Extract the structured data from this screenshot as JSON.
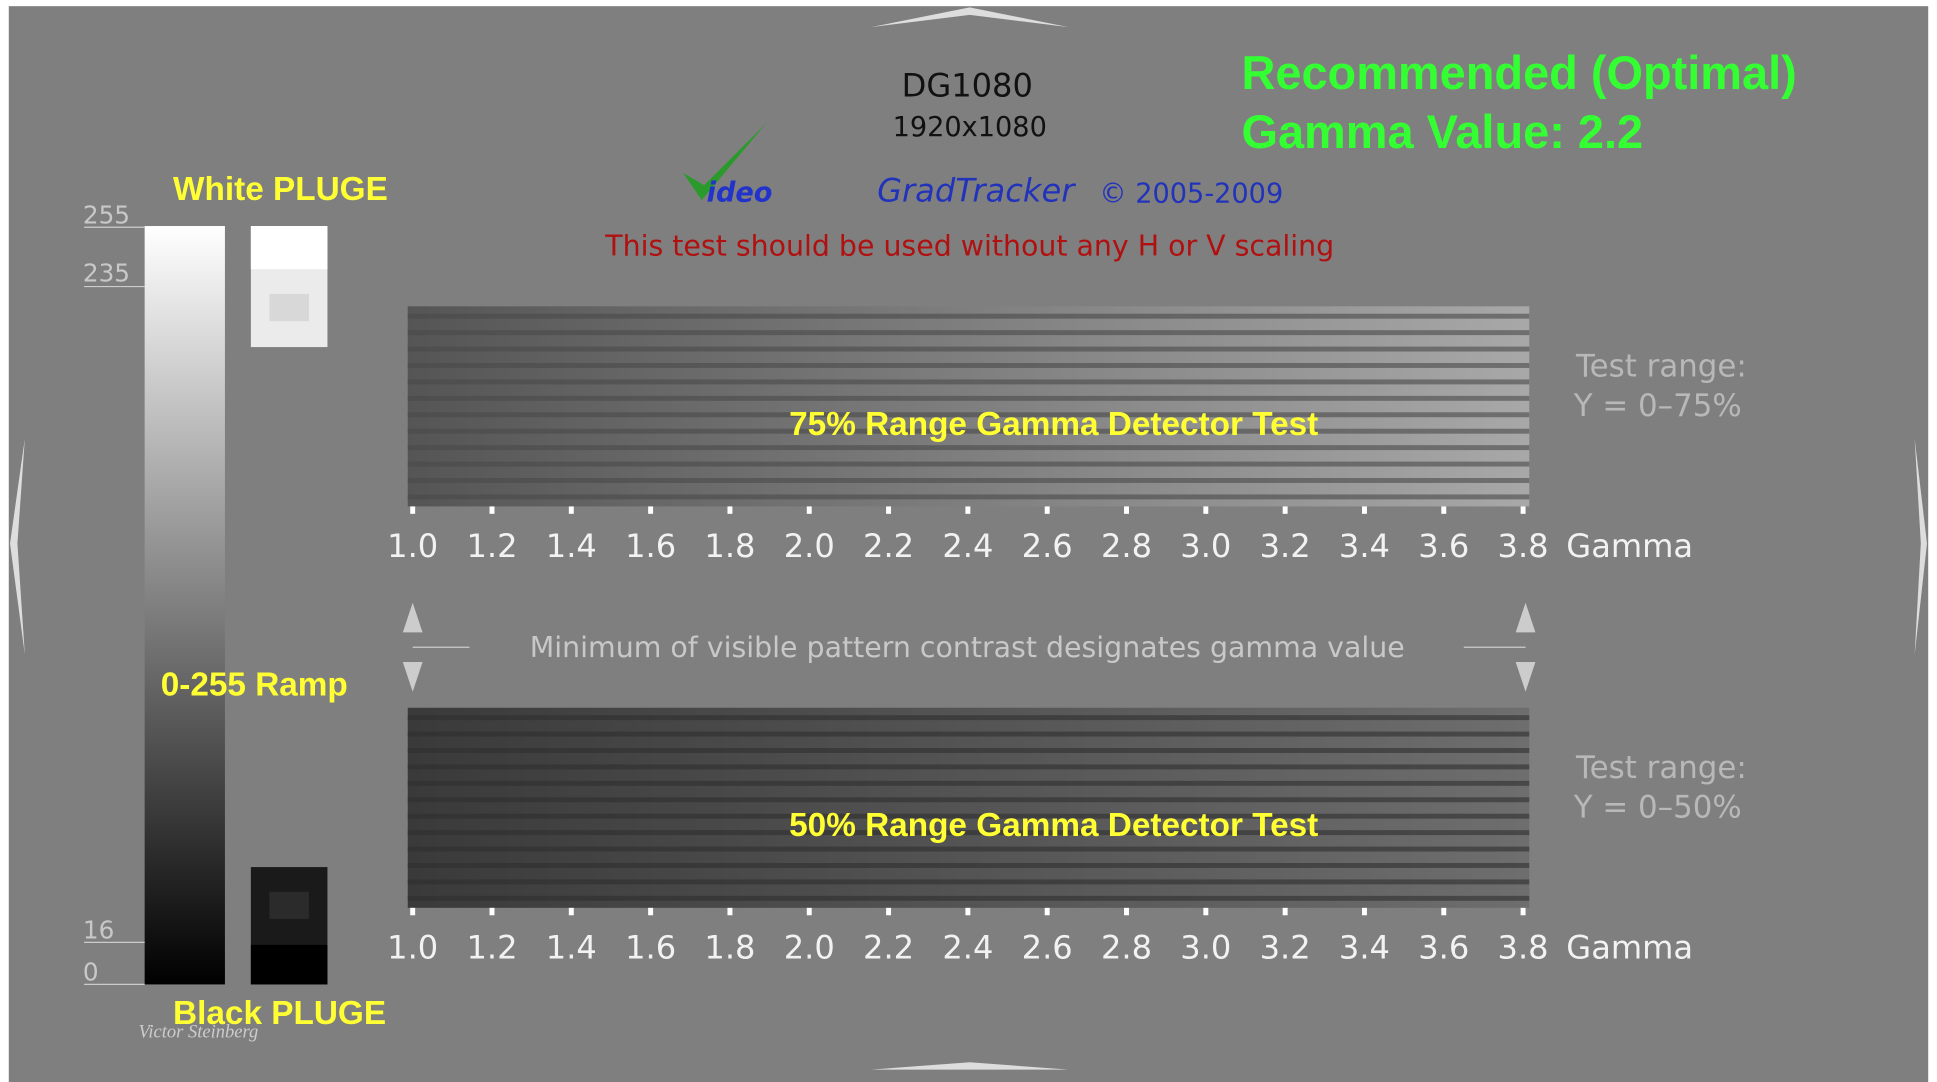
{
  "header": {
    "model": "DG1080",
    "resolution": "1920x1080",
    "brand": "ideo",
    "product": "GradTracker",
    "copyright": "© 2005-2009",
    "warning": "This test should be used without any H or V scaling"
  },
  "recommendation": [
    "Recommended (Optimal)",
    "Gamma Value: 2.2"
  ],
  "ramp": {
    "label": "0-255 Ramp",
    "levels": [
      "255",
      "235",
      "16",
      "0"
    ]
  },
  "pluge": {
    "white": "White PLUGE",
    "black": "Black PLUGE"
  },
  "instruction": "Minimum of visible pattern contrast designates gamma value",
  "tests": [
    {
      "title": "75% Range Gamma Detector Test",
      "range_label": "Test range:",
      "range": "Y = 0–75%",
      "ticks": [
        "1.0",
        "1.2",
        "1.4",
        "1.6",
        "1.8",
        "2.0",
        "2.2",
        "2.4",
        "2.6",
        "2.8",
        "3.0",
        "3.2",
        "3.4",
        "3.6",
        "3.8"
      ],
      "unit": "Gamma"
    },
    {
      "title": "50% Range Gamma Detector Test",
      "range_label": "Test range:",
      "range": "Y = 0–50%",
      "ticks": [
        "1.0",
        "1.2",
        "1.4",
        "1.6",
        "1.8",
        "2.0",
        "2.2",
        "2.4",
        "2.6",
        "2.8",
        "3.0",
        "3.2",
        "3.4",
        "3.6",
        "3.8"
      ],
      "unit": "Gamma"
    }
  ],
  "signature": "Victor Steinberg"
}
